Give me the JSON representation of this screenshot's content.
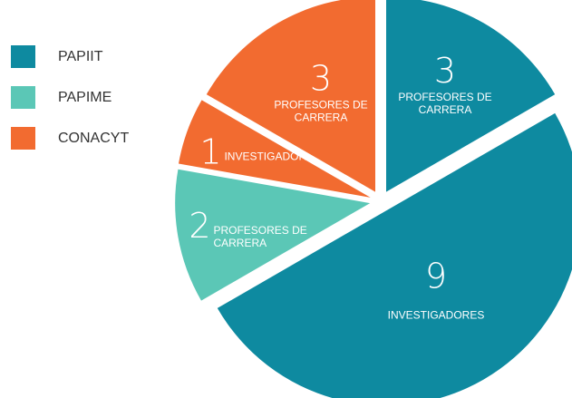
{
  "chart_data": {
    "type": "pie",
    "legend_placement": "left",
    "legend": [
      {
        "label": "PAPIIT",
        "color": "#0e8aa0"
      },
      {
        "label": "PAPIME",
        "color": "#5bc7b6"
      },
      {
        "label": "CONACYT",
        "color": "#f26b30"
      }
    ],
    "slices": [
      {
        "program": "PAPIIT",
        "value": 3,
        "label_lines": [
          "PROFESORES DE",
          "CARRERA"
        ],
        "color": "#0e8aa0"
      },
      {
        "program": "PAPIIT",
        "value": 9,
        "label_lines": [
          "INVESTIGADORES"
        ],
        "color": "#0e8aa0"
      },
      {
        "program": "PAPIME",
        "value": 2,
        "label_lines": [
          "PROFESORES DE",
          "CARRERA"
        ],
        "color": "#5bc7b6"
      },
      {
        "program": "CONACYT",
        "value": 1,
        "label_lines": [
          "INVESTIGADOR"
        ],
        "color": "#f26b30"
      },
      {
        "program": "CONACYT",
        "value": 3,
        "label_lines": [
          "PROFESORES DE",
          "CARRERA"
        ],
        "color": "#f26b30"
      }
    ]
  }
}
